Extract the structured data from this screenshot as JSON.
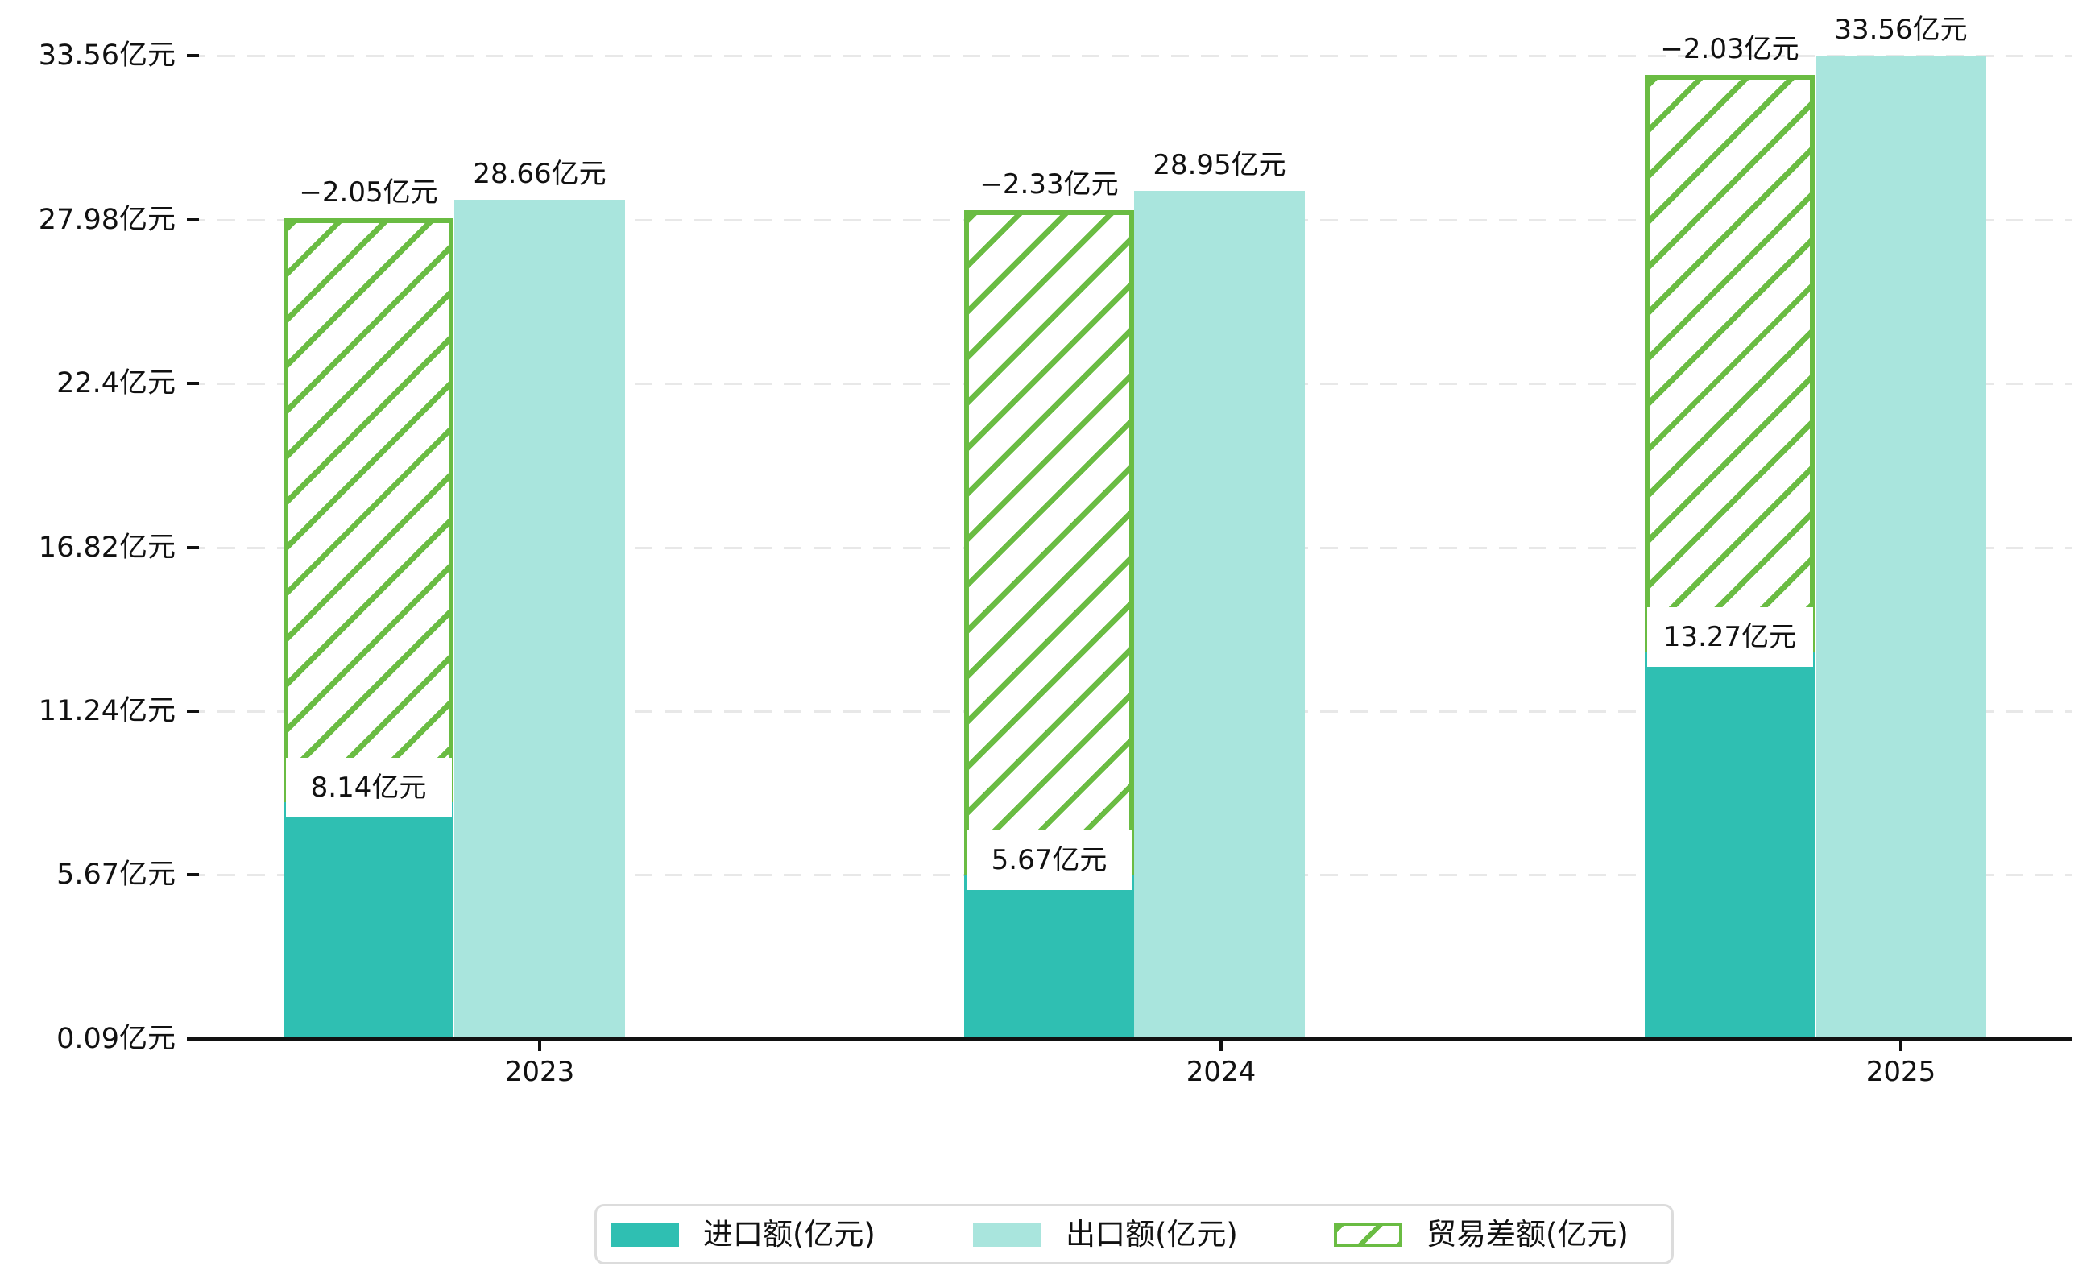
{
  "chart_data": {
    "type": "bar",
    "categories": [
      "2023",
      "2024",
      "2025"
    ],
    "series": [
      {
        "name": "进口额(亿元)",
        "color": "#2fbfb2",
        "style": "solid",
        "values": [
          8.14,
          5.67,
          13.27
        ],
        "data_labels": [
          "8.14亿元",
          "5.67亿元",
          "13.27亿元"
        ]
      },
      {
        "name": "出口额(亿元)",
        "color": "#a9e5dd",
        "style": "solid",
        "values": [
          28.66,
          28.95,
          33.56
        ],
        "data_labels": [
          "28.66亿元",
          "28.95亿元",
          "33.56亿元"
        ]
      },
      {
        "name": "贸易差额(亿元)",
        "color": "#6abc43",
        "style": "diagonal-hatch",
        "values": [
          -2.05,
          -2.33,
          -2.03
        ],
        "data_labels": [
          "−2.05亿元",
          "−2.33亿元",
          "−2.03亿元"
        ],
        "rendered_as": "hatched band from import top up to just below export top"
      }
    ],
    "y_axis": {
      "tick_values": [
        0.09,
        5.67,
        11.24,
        16.82,
        22.4,
        27.98,
        33.56
      ],
      "tick_labels": [
        "0.09亿元",
        "5.67亿元",
        "11.24亿元",
        "16.82亿元",
        "22.4亿元",
        "27.98亿元",
        "33.56亿元"
      ],
      "min": 0.09,
      "max": 33.56
    },
    "x_axis": {
      "tick_labels": [
        "2023",
        "2024",
        "2025"
      ]
    },
    "grid": "horizontal dashed light-gray",
    "legend_position": "bottom-center",
    "title": ""
  },
  "colors": {
    "import_bar": "#2fbfb2",
    "export_bar": "#a9e5dd",
    "balance_green": "#6abc43",
    "axis": "#111111",
    "gridline": "#e8e8e8",
    "legend_border": "#dcdcdc",
    "background": "#ffffff"
  }
}
